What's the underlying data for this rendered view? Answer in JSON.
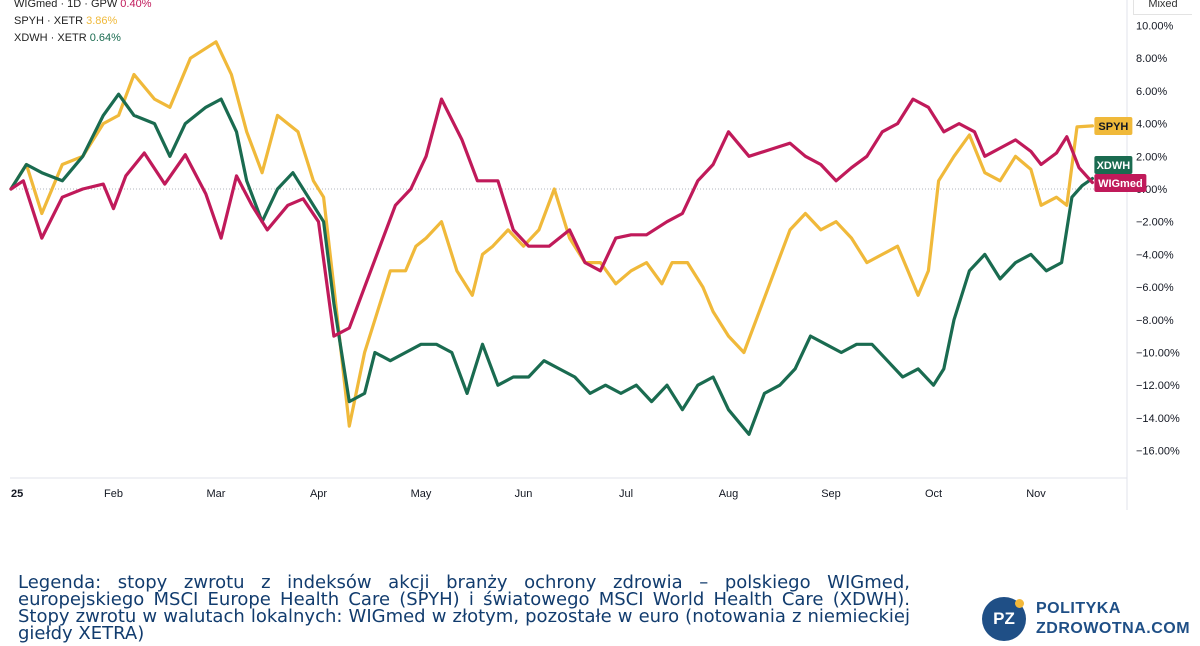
{
  "toolbar": {
    "mode_label": "Mixed"
  },
  "legend": [
    {
      "label": "WIGmed · 1D · GPW",
      "value": "0.40%",
      "color": "#c01a5a"
    },
    {
      "label": "SPYH · XETR",
      "value": "3.86%",
      "color": "#f0b93a"
    },
    {
      "label": "XDWH · XETR",
      "value": "0.64%",
      "color": "#1a6b50"
    }
  ],
  "caption": "Legenda: stopy zwrotu z indeksów akcji branży ochrony zdrowia – polskiego WIGmed, europejskiego MSCI Europe Health Care (SPYH) i światowego MSCI World Health Care (XDWH). Stopy zwrotu w walutach lokalnych: WIGmed w złotym, pozostałe w euro (notowania z niemieckiej giełdy XETRA)",
  "logo": {
    "initials": "PZ",
    "line1": "POLITYKA",
    "line2": "ZDROWOTNA.COM"
  },
  "chart_data": {
    "type": "line",
    "y_unit": "%",
    "ylim": [
      -17.5,
      11
    ],
    "y_ticks": [
      10,
      8,
      6,
      4,
      2,
      0,
      -2,
      -4,
      -6,
      -8,
      -10,
      -12,
      -14,
      -16
    ],
    "y_tick_labels": [
      "10.00%",
      "8.00%",
      "6.00%",
      "4.00%",
      "2.00%",
      "0.00%",
      "−2.00%",
      "−4.00%",
      "−6.00%",
      "−8.00%",
      "−10.00%",
      "−12.00%",
      "−14.00%",
      "−16.00%"
    ],
    "x_ticks": [
      {
        "label": "25",
        "x": 0
      },
      {
        "label": "Feb",
        "x": 1
      },
      {
        "label": "Mar",
        "x": 2
      },
      {
        "label": "Apr",
        "x": 3
      },
      {
        "label": "May",
        "x": 4
      },
      {
        "label": "Jun",
        "x": 5
      },
      {
        "label": "Jul",
        "x": 6
      },
      {
        "label": "Aug",
        "x": 7
      },
      {
        "label": "Sep",
        "x": 8
      },
      {
        "label": "Oct",
        "x": 9
      },
      {
        "label": "Nov",
        "x": 10
      }
    ],
    "x_unit": "months from January 2025",
    "grid": false,
    "legend_position": "top-left",
    "series": [
      {
        "name": "WIGmed",
        "color": "#c01a5a",
        "last_value": 0.4,
        "points": [
          [
            0,
            0
          ],
          [
            0.12,
            0.5
          ],
          [
            0.3,
            -3
          ],
          [
            0.5,
            -0.5
          ],
          [
            0.7,
            0
          ],
          [
            0.9,
            0.3
          ],
          [
            1.0,
            -1.2
          ],
          [
            1.12,
            0.8
          ],
          [
            1.3,
            2.2
          ],
          [
            1.5,
            0.3
          ],
          [
            1.7,
            2.1
          ],
          [
            1.9,
            -0.3
          ],
          [
            2.05,
            -3
          ],
          [
            2.2,
            0.8
          ],
          [
            2.35,
            -1
          ],
          [
            2.5,
            -2.5
          ],
          [
            2.7,
            -1
          ],
          [
            2.85,
            -0.6
          ],
          [
            3.0,
            -2
          ],
          [
            3.15,
            -9
          ],
          [
            3.3,
            -8.5
          ],
          [
            3.45,
            -6
          ],
          [
            3.6,
            -3.5
          ],
          [
            3.75,
            -1
          ],
          [
            3.9,
            0
          ],
          [
            4.05,
            2
          ],
          [
            4.2,
            5.5
          ],
          [
            4.4,
            3
          ],
          [
            4.55,
            0.5
          ],
          [
            4.75,
            0.5
          ],
          [
            4.9,
            -2.5
          ],
          [
            5.05,
            -3.5
          ],
          [
            5.25,
            -3.5
          ],
          [
            5.45,
            -2.5
          ],
          [
            5.6,
            -4.5
          ],
          [
            5.75,
            -5
          ],
          [
            5.9,
            -3
          ],
          [
            6.05,
            -2.8
          ],
          [
            6.2,
            -2.8
          ],
          [
            6.4,
            -2
          ],
          [
            6.55,
            -1.5
          ],
          [
            6.7,
            0.5
          ],
          [
            6.85,
            1.5
          ],
          [
            7.0,
            3.5
          ],
          [
            7.2,
            2
          ],
          [
            7.45,
            2.5
          ],
          [
            7.6,
            2.8
          ],
          [
            7.75,
            2
          ],
          [
            7.9,
            1.5
          ],
          [
            8.05,
            0.5
          ],
          [
            8.2,
            1.3
          ],
          [
            8.35,
            2
          ],
          [
            8.5,
            3.5
          ],
          [
            8.65,
            4
          ],
          [
            8.8,
            5.5
          ],
          [
            8.95,
            5
          ],
          [
            9.1,
            3.5
          ],
          [
            9.25,
            4
          ],
          [
            9.4,
            3.5
          ],
          [
            9.5,
            2
          ],
          [
            9.65,
            2.5
          ],
          [
            9.8,
            3
          ],
          [
            9.95,
            2.3
          ],
          [
            10.05,
            1.5
          ],
          [
            10.2,
            2.2
          ],
          [
            10.3,
            3.2
          ],
          [
            10.42,
            1.3
          ],
          [
            10.55,
            0.4
          ]
        ]
      },
      {
        "name": "SPYH",
        "color": "#f0b93a",
        "last_value": 3.86,
        "points": [
          [
            0,
            0
          ],
          [
            0.15,
            1.5
          ],
          [
            0.3,
            -1.5
          ],
          [
            0.5,
            1.5
          ],
          [
            0.7,
            2
          ],
          [
            0.9,
            4
          ],
          [
            1.05,
            4.5
          ],
          [
            1.2,
            7
          ],
          [
            1.4,
            5.5
          ],
          [
            1.55,
            5
          ],
          [
            1.75,
            8
          ],
          [
            2.0,
            9
          ],
          [
            2.15,
            7
          ],
          [
            2.3,
            3.5
          ],
          [
            2.45,
            1
          ],
          [
            2.6,
            4.5
          ],
          [
            2.8,
            3.5
          ],
          [
            2.95,
            0.5
          ],
          [
            3.05,
            -0.5
          ],
          [
            3.15,
            -6
          ],
          [
            3.3,
            -14.5
          ],
          [
            3.45,
            -10
          ],
          [
            3.55,
            -8
          ],
          [
            3.7,
            -5
          ],
          [
            3.85,
            -5
          ],
          [
            3.95,
            -3.5
          ],
          [
            4.05,
            -3
          ],
          [
            4.2,
            -2
          ],
          [
            4.35,
            -5
          ],
          [
            4.5,
            -6.5
          ],
          [
            4.6,
            -4
          ],
          [
            4.7,
            -3.5
          ],
          [
            4.85,
            -2.5
          ],
          [
            5.0,
            -3.5
          ],
          [
            5.15,
            -2.5
          ],
          [
            5.3,
            0
          ],
          [
            5.45,
            -3
          ],
          [
            5.6,
            -4.5
          ],
          [
            5.75,
            -4.5
          ],
          [
            5.9,
            -5.8
          ],
          [
            6.05,
            -5
          ],
          [
            6.2,
            -4.5
          ],
          [
            6.35,
            -5.8
          ],
          [
            6.45,
            -4.5
          ],
          [
            6.6,
            -4.5
          ],
          [
            6.75,
            -6
          ],
          [
            6.85,
            -7.5
          ],
          [
            7.0,
            -9
          ],
          [
            7.15,
            -10
          ],
          [
            7.3,
            -7.5
          ],
          [
            7.45,
            -5
          ],
          [
            7.6,
            -2.5
          ],
          [
            7.75,
            -1.5
          ],
          [
            7.9,
            -2.5
          ],
          [
            8.05,
            -2
          ],
          [
            8.2,
            -3
          ],
          [
            8.35,
            -4.5
          ],
          [
            8.5,
            -4
          ],
          [
            8.65,
            -3.5
          ],
          [
            8.75,
            -5
          ],
          [
            8.85,
            -6.5
          ],
          [
            8.95,
            -5
          ],
          [
            9.05,
            0.5
          ],
          [
            9.2,
            2
          ],
          [
            9.35,
            3.3
          ],
          [
            9.5,
            1
          ],
          [
            9.65,
            0.5
          ],
          [
            9.8,
            2
          ],
          [
            9.95,
            1.2
          ],
          [
            10.05,
            -1
          ],
          [
            10.2,
            -0.5
          ],
          [
            10.3,
            -1
          ],
          [
            10.4,
            3.8
          ],
          [
            10.55,
            3.86
          ]
        ]
      },
      {
        "name": "XDWH",
        "color": "#1a6b50",
        "last_value": 0.64,
        "points": [
          [
            0,
            0
          ],
          [
            0.15,
            1.5
          ],
          [
            0.3,
            1
          ],
          [
            0.5,
            0.5
          ],
          [
            0.7,
            2
          ],
          [
            0.9,
            4.5
          ],
          [
            1.05,
            5.8
          ],
          [
            1.2,
            4.5
          ],
          [
            1.4,
            4
          ],
          [
            1.55,
            2
          ],
          [
            1.7,
            4
          ],
          [
            1.9,
            5
          ],
          [
            2.05,
            5.5
          ],
          [
            2.2,
            3.5
          ],
          [
            2.3,
            0.5
          ],
          [
            2.45,
            -2
          ],
          [
            2.6,
            0
          ],
          [
            2.75,
            1
          ],
          [
            2.9,
            -0.5
          ],
          [
            3.05,
            -2
          ],
          [
            3.15,
            -7
          ],
          [
            3.3,
            -13
          ],
          [
            3.45,
            -12.5
          ],
          [
            3.55,
            -10
          ],
          [
            3.7,
            -10.5
          ],
          [
            3.85,
            -10
          ],
          [
            4.0,
            -9.5
          ],
          [
            4.15,
            -9.5
          ],
          [
            4.3,
            -10
          ],
          [
            4.45,
            -12.5
          ],
          [
            4.6,
            -9.5
          ],
          [
            4.75,
            -12
          ],
          [
            4.9,
            -11.5
          ],
          [
            5.05,
            -11.5
          ],
          [
            5.2,
            -10.5
          ],
          [
            5.35,
            -11
          ],
          [
            5.5,
            -11.5
          ],
          [
            5.65,
            -12.5
          ],
          [
            5.8,
            -12
          ],
          [
            5.95,
            -12.5
          ],
          [
            6.1,
            -12
          ],
          [
            6.25,
            -13
          ],
          [
            6.4,
            -12
          ],
          [
            6.55,
            -13.5
          ],
          [
            6.7,
            -12
          ],
          [
            6.85,
            -11.5
          ],
          [
            7.0,
            -13.5
          ],
          [
            7.2,
            -15
          ],
          [
            7.35,
            -12.5
          ],
          [
            7.5,
            -12
          ],
          [
            7.65,
            -11
          ],
          [
            7.8,
            -9
          ],
          [
            7.95,
            -9.5
          ],
          [
            8.1,
            -10
          ],
          [
            8.25,
            -9.5
          ],
          [
            8.4,
            -9.5
          ],
          [
            8.55,
            -10.5
          ],
          [
            8.7,
            -11.5
          ],
          [
            8.85,
            -11
          ],
          [
            9.0,
            -12
          ],
          [
            9.1,
            -11
          ],
          [
            9.2,
            -8
          ],
          [
            9.35,
            -5
          ],
          [
            9.5,
            -4
          ],
          [
            9.65,
            -5.5
          ],
          [
            9.8,
            -4.5
          ],
          [
            9.95,
            -4
          ],
          [
            10.1,
            -5
          ],
          [
            10.25,
            -4.5
          ],
          [
            10.35,
            -0.5
          ],
          [
            10.45,
            0.2
          ],
          [
            10.55,
            0.64
          ]
        ]
      }
    ]
  }
}
